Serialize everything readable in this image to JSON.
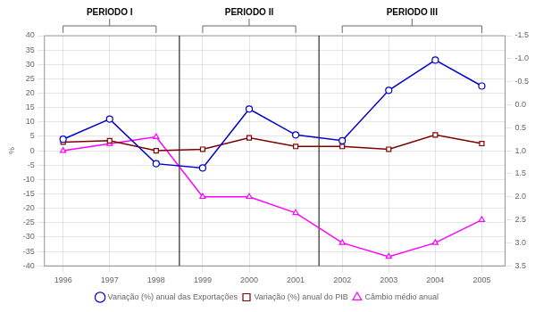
{
  "chart_data": {
    "type": "line",
    "x": [
      1996,
      1997,
      1998,
      1999,
      2000,
      2001,
      2002,
      2003,
      2004,
      2005
    ],
    "series": [
      {
        "name": "Variação (%) anual das Exportações",
        "color": "#0000cc",
        "marker": "circle",
        "values": [
          4.0,
          11.0,
          -4.5,
          -6.0,
          14.5,
          5.5,
          3.5,
          21.0,
          31.5,
          22.5
        ]
      },
      {
        "name": "Variação (%) anual do PIB",
        "color": "#800000",
        "marker": "square",
        "values": [
          3.0,
          3.5,
          0.0,
          0.5,
          4.5,
          1.5,
          1.5,
          0.5,
          5.5,
          2.5
        ]
      },
      {
        "name": "Câmbio médio anual",
        "color": "#ff00ff",
        "marker": "triangle",
        "axis": "y2",
        "values": [
          1.0,
          0.85,
          0.7,
          2.0,
          2.0,
          2.35,
          3.0,
          3.3,
          3.0,
          2.5
        ]
      }
    ],
    "xlim": [
      1995.6,
      2005.5
    ],
    "xticks": [
      1996,
      1997,
      1998,
      1999,
      2000,
      2001,
      2002,
      2003,
      2004,
      2005
    ],
    "ylim": [
      -40.0,
      40.0
    ],
    "yticks": [
      -40,
      -35,
      -30,
      -25,
      -20,
      -15,
      -10,
      -5,
      0,
      5,
      10,
      15,
      20,
      25,
      30,
      35,
      40
    ],
    "y2lim": [
      3.5,
      -1.5
    ],
    "y2ticks": [
      -1.5,
      {
        "value": -1.0,
        "label": "-1.0"
      },
      -0.5,
      {
        "value": 0.0,
        "label": "0.0"
      },
      0.5,
      {
        "value": 1.0,
        "label": "1.0"
      },
      1.5,
      {
        "value": 2.0,
        "label": "2.0"
      },
      2.5,
      {
        "value": 3.0,
        "label": "3.0"
      },
      3.5
    ],
    "ylabel": "%",
    "grid": true,
    "legend": "bottom",
    "annotations": [
      {
        "text": "PERIODO I",
        "x_start": 1996,
        "x_end": 1998
      },
      {
        "text": "PERIODO II",
        "x_start": 1999,
        "x_end": 2001
      },
      {
        "text": "PERIODO III",
        "x_start": 2002,
        "x_end": 2005
      }
    ],
    "vlines": [
      1998.5,
      2001.5
    ]
  }
}
